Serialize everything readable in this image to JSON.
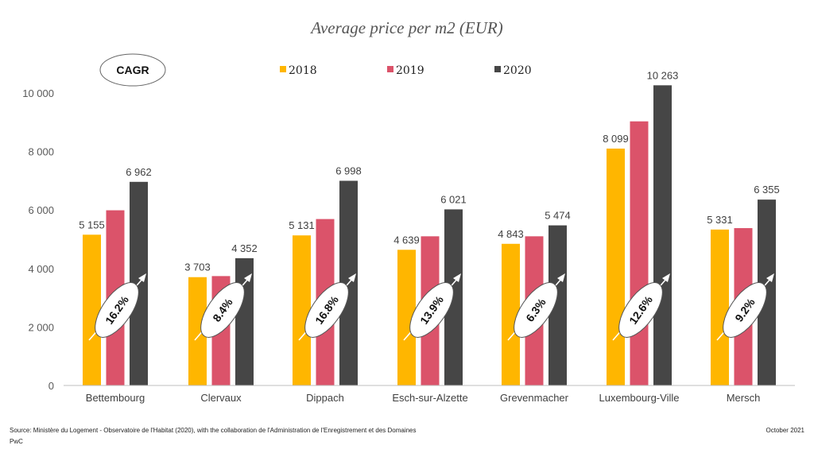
{
  "chart_data": {
    "type": "bar",
    "title": "Average price per m2 (EUR)",
    "categories": [
      "Bettembourg",
      "Clervaux",
      "Dippach",
      "Esch-sur-Alzette",
      "Grevenmacher",
      "Luxembourg-Ville",
      "Mersch"
    ],
    "series": [
      {
        "name": "2018",
        "color": "#FFB600",
        "values": [
          5155,
          3703,
          5131,
          4639,
          4843,
          8099,
          5331
        ],
        "labels": [
          "5 155",
          "3 703",
          "5 131",
          "4 639",
          "4 843",
          "8 099",
          "5 331"
        ]
      },
      {
        "name": "2019",
        "color": "#DB536A",
        "values": [
          5990,
          3740,
          5690,
          5100,
          5100,
          9030,
          5380
        ]
      },
      {
        "name": "2020",
        "color": "#464646",
        "values": [
          6962,
          4352,
          6998,
          6021,
          5474,
          10263,
          6355
        ],
        "labels": [
          "6 962",
          "4 352",
          "6 998",
          "6 021",
          "5 474",
          "10 263",
          "6 355"
        ]
      }
    ],
    "cagr_label": "CAGR",
    "cagr": [
      "16.2%",
      "8.4%",
      "16.8%",
      "13.9%",
      "6.3%",
      "12.6%",
      "9.2%"
    ],
    "ylim": [
      0,
      10000
    ],
    "yticks": [
      0,
      2000,
      4000,
      6000,
      8000,
      10000
    ],
    "ytick_labels": [
      "0",
      "2 000",
      "4 000",
      "6 000",
      "8 000",
      "10 000"
    ],
    "grid": false,
    "legend_position": "top"
  },
  "footer": {
    "source": "Source: Ministère du Logement - Observatoire de l'Habitat (2020), with the collaboration de l'Administration de l'Enregistrement et des Domaines",
    "author": "PwC",
    "date": "October 2021"
  }
}
